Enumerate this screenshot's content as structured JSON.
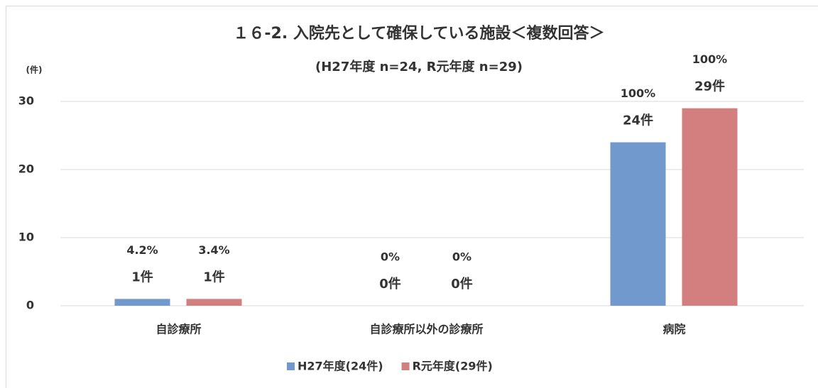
{
  "chart_data": {
    "type": "bar",
    "title": "１６-2. 入院先として確保している施設＜複数回答＞",
    "subtitle": "(H27年度 n=24, R元年度 n=29)",
    "y_unit_label": "(件)",
    "categories": [
      "自診療所",
      "自診療所以外の診療所",
      "病院"
    ],
    "series": [
      {
        "name": "H27年度(24件)",
        "color": "#7199cd",
        "values": [
          1,
          0,
          24
        ],
        "value_labels": [
          "1件",
          "0件",
          "24件"
        ],
        "percent_labels": [
          "4.2%",
          "0%",
          "100%"
        ]
      },
      {
        "name": "R元年度(29件)",
        "color": "#d47f7f",
        "values": [
          1,
          0,
          29
        ],
        "value_labels": [
          "1件",
          "0件",
          "29件"
        ],
        "percent_labels": [
          "3.4%",
          "0%",
          "100%"
        ]
      }
    ],
    "ylim": [
      0,
      30
    ],
    "yticks": [
      0,
      10,
      20,
      30
    ],
    "grid": true,
    "legend": "bottom"
  }
}
